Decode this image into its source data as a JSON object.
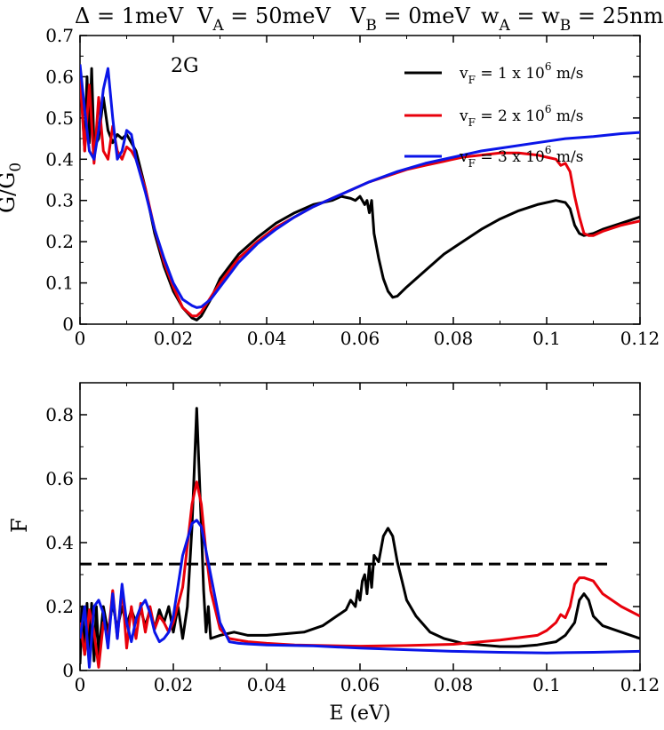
{
  "header": {
    "delta": "Δ = 1meV",
    "va_label": "V",
    "va_sub": "A",
    "va_value": " = 50meV",
    "vb_label": "V",
    "vb_sub": "B",
    "vb_value": " = 0meV",
    "wa_label": "w",
    "wa_sub": "A",
    "wb_eq": " = w",
    "wb_sub": "B",
    "wb_value": " = 25nm"
  },
  "colors": {
    "black": "#000000",
    "red": "#e8000b",
    "blue": "#0a15e8"
  },
  "chart_data": [
    {
      "type": "line",
      "panel": "top",
      "annotation": "2G",
      "ylabel": "G/G",
      "ylabel_sub": "0",
      "xlim": [
        0,
        0.12
      ],
      "ylim": [
        0,
        0.7
      ],
      "xticks": [
        0,
        0.02,
        0.04,
        0.06,
        0.08,
        0.1,
        0.12
      ],
      "xtick_labels": [
        "0",
        "0.02",
        "0.04",
        "0.06",
        "0.08",
        "0.1",
        "0.12"
      ],
      "yticks": [
        0,
        0.1,
        0.2,
        0.3,
        0.4,
        0.5,
        0.6,
        0.7
      ],
      "ytick_labels": [
        "0",
        "0.1",
        "0.2",
        "0.3",
        "0.4",
        "0.5",
        "0.6",
        "0.7"
      ],
      "legend_position": "top-right",
      "series": [
        {
          "name": "vF = 1 x 10^6 m/s",
          "legend": {
            "pre": "v",
            "sub": "F",
            "mid": " = 1 x 10",
            "sup": "6",
            "post": " m/s"
          },
          "color": "#000000",
          "x": [
            0,
            0.0005,
            0.001,
            0.0015,
            0.002,
            0.0025,
            0.003,
            0.004,
            0.005,
            0.006,
            0.007,
            0.008,
            0.009,
            0.01,
            0.011,
            0.012,
            0.014,
            0.016,
            0.018,
            0.02,
            0.022,
            0.024,
            0.025,
            0.026,
            0.028,
            0.03,
            0.034,
            0.038,
            0.042,
            0.046,
            0.05,
            0.054,
            0.056,
            0.058,
            0.059,
            0.06,
            0.061,
            0.0615,
            0.062,
            0.0625,
            0.063,
            0.064,
            0.065,
            0.066,
            0.067,
            0.068,
            0.07,
            0.074,
            0.078,
            0.082,
            0.086,
            0.09,
            0.094,
            0.098,
            0.102,
            0.104,
            0.105,
            0.106,
            0.107,
            0.108,
            0.11,
            0.112,
            0.116,
            0.12
          ],
          "y": [
            0.62,
            0.52,
            0.42,
            0.6,
            0.44,
            0.62,
            0.43,
            0.45,
            0.55,
            0.47,
            0.44,
            0.46,
            0.45,
            0.46,
            0.44,
            0.42,
            0.33,
            0.22,
            0.14,
            0.08,
            0.04,
            0.015,
            0.01,
            0.02,
            0.06,
            0.11,
            0.17,
            0.21,
            0.245,
            0.27,
            0.29,
            0.3,
            0.31,
            0.305,
            0.3,
            0.31,
            0.29,
            0.3,
            0.27,
            0.3,
            0.22,
            0.16,
            0.11,
            0.08,
            0.065,
            0.068,
            0.09,
            0.13,
            0.17,
            0.2,
            0.23,
            0.255,
            0.275,
            0.29,
            0.3,
            0.295,
            0.28,
            0.24,
            0.22,
            0.215,
            0.22,
            0.23,
            0.245,
            0.26
          ]
        },
        {
          "name": "vF = 2 x 10^6 m/s",
          "legend": {
            "pre": "v",
            "sub": "F",
            "mid": " = 2 x 10",
            "sup": "6",
            "post": " m/s"
          },
          "color": "#e8000b",
          "x": [
            0,
            0.001,
            0.002,
            0.003,
            0.004,
            0.005,
            0.006,
            0.007,
            0.008,
            0.009,
            0.01,
            0.011,
            0.012,
            0.014,
            0.016,
            0.018,
            0.02,
            0.022,
            0.024,
            0.025,
            0.026,
            0.028,
            0.03,
            0.034,
            0.038,
            0.042,
            0.046,
            0.05,
            0.054,
            0.058,
            0.062,
            0.066,
            0.07,
            0.074,
            0.078,
            0.082,
            0.086,
            0.09,
            0.094,
            0.098,
            0.1,
            0.102,
            0.103,
            0.104,
            0.105,
            0.106,
            0.107,
            0.108,
            0.109,
            0.11,
            0.112,
            0.116,
            0.12
          ],
          "y": [
            0.6,
            0.42,
            0.58,
            0.39,
            0.55,
            0.42,
            0.4,
            0.48,
            0.42,
            0.4,
            0.43,
            0.42,
            0.4,
            0.33,
            0.23,
            0.15,
            0.09,
            0.04,
            0.02,
            0.02,
            0.03,
            0.065,
            0.1,
            0.16,
            0.2,
            0.235,
            0.26,
            0.285,
            0.305,
            0.325,
            0.345,
            0.36,
            0.375,
            0.385,
            0.395,
            0.405,
            0.41,
            0.415,
            0.415,
            0.41,
            0.405,
            0.4,
            0.385,
            0.39,
            0.37,
            0.31,
            0.26,
            0.22,
            0.215,
            0.215,
            0.225,
            0.24,
            0.25
          ]
        },
        {
          "name": "vF = 3 x 10^6 m/s",
          "legend": {
            "pre": "v",
            "sub": "F",
            "mid": " = 3 x 10",
            "sup": "6",
            "post": " m/s"
          },
          "color": "#0a15e8",
          "x": [
            0,
            0.001,
            0.002,
            0.003,
            0.004,
            0.005,
            0.006,
            0.007,
            0.008,
            0.009,
            0.01,
            0.011,
            0.012,
            0.014,
            0.016,
            0.018,
            0.02,
            0.022,
            0.024,
            0.025,
            0.026,
            0.028,
            0.03,
            0.034,
            0.038,
            0.042,
            0.046,
            0.05,
            0.056,
            0.062,
            0.068,
            0.074,
            0.08,
            0.086,
            0.092,
            0.098,
            0.104,
            0.11,
            0.116,
            0.12
          ],
          "y": [
            0.63,
            0.52,
            0.42,
            0.4,
            0.47,
            0.57,
            0.62,
            0.5,
            0.4,
            0.42,
            0.47,
            0.46,
            0.4,
            0.32,
            0.23,
            0.16,
            0.1,
            0.06,
            0.045,
            0.04,
            0.042,
            0.06,
            0.09,
            0.15,
            0.195,
            0.23,
            0.26,
            0.285,
            0.315,
            0.345,
            0.37,
            0.39,
            0.405,
            0.42,
            0.43,
            0.44,
            0.45,
            0.455,
            0.462,
            0.465
          ]
        }
      ]
    },
    {
      "type": "line",
      "panel": "bottom",
      "xlabel": "E (eV)",
      "ylabel": "F",
      "xlim": [
        0,
        0.12
      ],
      "ylim": [
        0,
        0.9
      ],
      "xticks": [
        0,
        0.02,
        0.04,
        0.06,
        0.08,
        0.1,
        0.12
      ],
      "xtick_labels": [
        "0",
        "0.02",
        "0.04",
        "0.06",
        "0.08",
        "0.1",
        "0.12"
      ],
      "yticks": [
        0,
        0.2,
        0.4,
        0.6,
        0.8
      ],
      "ytick_labels": [
        "0",
        "0.2",
        "0.4",
        "0.6",
        "0.8"
      ],
      "reference_line": {
        "y": 0.333,
        "x_range": [
          0,
          0.114
        ],
        "style": "dashed",
        "color": "#000000"
      },
      "series": [
        {
          "name": "vF = 1 x 10^6 m/s",
          "color": "#000000",
          "x": [
            0,
            0.0005,
            0.001,
            0.0015,
            0.002,
            0.0025,
            0.003,
            0.0035,
            0.004,
            0.005,
            0.006,
            0.007,
            0.008,
            0.009,
            0.01,
            0.011,
            0.012,
            0.013,
            0.014,
            0.015,
            0.016,
            0.017,
            0.018,
            0.019,
            0.02,
            0.021,
            0.022,
            0.023,
            0.024,
            0.025,
            0.026,
            0.0265,
            0.027,
            0.0275,
            0.028,
            0.03,
            0.033,
            0.036,
            0.04,
            0.044,
            0.048,
            0.052,
            0.055,
            0.057,
            0.058,
            0.059,
            0.0595,
            0.06,
            0.0605,
            0.061,
            0.0615,
            0.062,
            0.0625,
            0.063,
            0.064,
            0.065,
            0.066,
            0.067,
            0.068,
            0.069,
            0.07,
            0.072,
            0.075,
            0.078,
            0.082,
            0.086,
            0.09,
            0.094,
            0.098,
            0.102,
            0.104,
            0.106,
            0.107,
            0.108,
            0.109,
            0.11,
            0.112,
            0.116,
            0.12
          ],
          "y": [
            0.02,
            0.2,
            0.05,
            0.21,
            0.05,
            0.21,
            0.03,
            0.2,
            0.05,
            0.2,
            0.12,
            0.21,
            0.13,
            0.2,
            0.14,
            0.19,
            0.15,
            0.19,
            0.14,
            0.19,
            0.13,
            0.19,
            0.15,
            0.2,
            0.12,
            0.2,
            0.1,
            0.2,
            0.45,
            0.82,
            0.45,
            0.25,
            0.12,
            0.2,
            0.1,
            0.11,
            0.12,
            0.11,
            0.11,
            0.115,
            0.12,
            0.14,
            0.17,
            0.19,
            0.22,
            0.2,
            0.25,
            0.22,
            0.28,
            0.3,
            0.24,
            0.33,
            0.26,
            0.36,
            0.34,
            0.42,
            0.445,
            0.42,
            0.34,
            0.28,
            0.22,
            0.17,
            0.12,
            0.1,
            0.085,
            0.08,
            0.075,
            0.075,
            0.08,
            0.09,
            0.11,
            0.15,
            0.22,
            0.24,
            0.22,
            0.17,
            0.14,
            0.12,
            0.1
          ]
        },
        {
          "name": "vF = 2 x 10^6 m/s",
          "color": "#e8000b",
          "x": [
            0,
            0.001,
            0.002,
            0.003,
            0.004,
            0.005,
            0.006,
            0.007,
            0.008,
            0.009,
            0.01,
            0.011,
            0.012,
            0.013,
            0.014,
            0.015,
            0.016,
            0.017,
            0.018,
            0.019,
            0.02,
            0.022,
            0.024,
            0.025,
            0.026,
            0.027,
            0.028,
            0.03,
            0.032,
            0.034,
            0.036,
            0.04,
            0.046,
            0.052,
            0.06,
            0.07,
            0.08,
            0.09,
            0.098,
            0.1,
            0.102,
            0.103,
            0.104,
            0.105,
            0.106,
            0.107,
            0.108,
            0.11,
            0.112,
            0.116,
            0.12
          ],
          "y": [
            0.15,
            0.05,
            0.19,
            0.12,
            0.01,
            0.15,
            0.1,
            0.25,
            0.1,
            0.26,
            0.07,
            0.2,
            0.1,
            0.21,
            0.12,
            0.2,
            0.13,
            0.17,
            0.15,
            0.12,
            0.15,
            0.26,
            0.52,
            0.59,
            0.52,
            0.37,
            0.25,
            0.13,
            0.1,
            0.095,
            0.09,
            0.085,
            0.08,
            0.078,
            0.076,
            0.078,
            0.082,
            0.095,
            0.11,
            0.125,
            0.15,
            0.175,
            0.165,
            0.2,
            0.27,
            0.29,
            0.29,
            0.28,
            0.24,
            0.2,
            0.17
          ]
        },
        {
          "name": "vF = 3 x 10^6 m/s",
          "color": "#0a15e8",
          "x": [
            0,
            0.001,
            0.002,
            0.003,
            0.004,
            0.005,
            0.006,
            0.007,
            0.008,
            0.009,
            0.01,
            0.011,
            0.012,
            0.013,
            0.014,
            0.015,
            0.016,
            0.017,
            0.018,
            0.019,
            0.02,
            0.022,
            0.024,
            0.025,
            0.026,
            0.028,
            0.03,
            0.032,
            0.034,
            0.036,
            0.04,
            0.05,
            0.06,
            0.07,
            0.08,
            0.09,
            0.1,
            0.11,
            0.12
          ],
          "y": [
            0.1,
            0.2,
            0.01,
            0.2,
            0.22,
            0.18,
            0.07,
            0.24,
            0.1,
            0.27,
            0.15,
            0.09,
            0.16,
            0.2,
            0.22,
            0.18,
            0.12,
            0.09,
            0.1,
            0.12,
            0.17,
            0.36,
            0.46,
            0.47,
            0.45,
            0.3,
            0.15,
            0.09,
            0.085,
            0.083,
            0.08,
            0.077,
            0.07,
            0.065,
            0.06,
            0.057,
            0.055,
            0.057,
            0.06
          ]
        }
      ]
    }
  ]
}
